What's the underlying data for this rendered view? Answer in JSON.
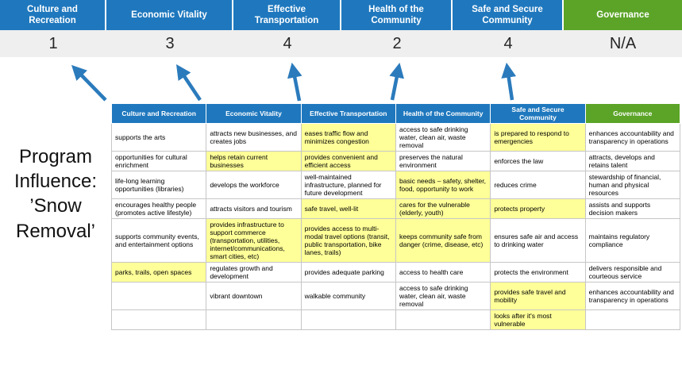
{
  "colors": {
    "blue": "#1F78BE",
    "green": "#5BA427",
    "score_bg": "#EFEFEF",
    "highlight": "#FFFF99",
    "border": "#C6C6C6",
    "arrow": "#2B7BBC"
  },
  "title": "Program Influence: ’Snow Removal’",
  "pillars": [
    {
      "label": "Culture and Recreation",
      "color_key": "blue",
      "score": "1"
    },
    {
      "label": "Economic Vitality",
      "color_key": "blue",
      "score": "3"
    },
    {
      "label": "Effective Transportation",
      "color_key": "blue",
      "score": "4"
    },
    {
      "label": "Health of the Community",
      "color_key": "blue",
      "score": "2"
    },
    {
      "label": "Safe and Secure Community",
      "color_key": "blue",
      "score": "4"
    },
    {
      "label": "Governance",
      "color_key": "green",
      "score": "N/A"
    }
  ],
  "table": {
    "headers": [
      {
        "label": "Culture and Recreation",
        "color_key": "blue"
      },
      {
        "label": "Economic Vitality",
        "color_key": "blue"
      },
      {
        "label": "Effective Transportation",
        "color_key": "blue"
      },
      {
        "label": "Health of the Community",
        "color_key": "blue"
      },
      {
        "label": "Safe and Secure Community",
        "color_key": "blue"
      },
      {
        "label": "Governance",
        "color_key": "green"
      }
    ],
    "rows": [
      [
        {
          "text": "supports the arts",
          "highlight": false
        },
        {
          "text": "attracts new businesses, and creates jobs",
          "highlight": false
        },
        {
          "text": "eases traffic flow and minimizes congestion",
          "highlight": true
        },
        {
          "text": "access to safe drinking water, clean air, waste removal",
          "highlight": false
        },
        {
          "text": "is prepared to respond to emergencies",
          "highlight": true
        },
        {
          "text": "enhances accountability and transparency in operations",
          "highlight": false
        }
      ],
      [
        {
          "text": "opportunities for cultural enrichment",
          "highlight": false
        },
        {
          "text": "helps retain current businesses",
          "highlight": true
        },
        {
          "text": "provides convenient and efficient access",
          "highlight": true
        },
        {
          "text": "preserves the natural environment",
          "highlight": false
        },
        {
          "text": "enforces the law",
          "highlight": false
        },
        {
          "text": "attracts, develops and retains talent",
          "highlight": false
        }
      ],
      [
        {
          "text": "life-long learning opportunities (libraries)",
          "highlight": false
        },
        {
          "text": "develops the workforce",
          "highlight": false
        },
        {
          "text": "well-maintained infrastructure, planned for future development",
          "highlight": false
        },
        {
          "text": "basic needs – safety, shelter, food, opportunity to work",
          "highlight": true
        },
        {
          "text": "reduces crime",
          "highlight": false
        },
        {
          "text": "stewardship of financial, human and physical resources",
          "highlight": false
        }
      ],
      [
        {
          "text": "encourages healthy people (promotes active lifestyle)",
          "highlight": false
        },
        {
          "text": "attracts visitors and tourism",
          "highlight": false
        },
        {
          "text": "safe travel, well-lit",
          "highlight": true
        },
        {
          "text": "cares for the vulnerable (elderly, youth)",
          "highlight": true
        },
        {
          "text": "protects property",
          "highlight": true
        },
        {
          "text": "assists and supports decision makers",
          "highlight": false
        }
      ],
      [
        {
          "text": "supports community events, and entertainment options",
          "highlight": false
        },
        {
          "text": "provides infrastructure to support commerce (transportation, utilities, internet/communications, smart cities, etc)",
          "highlight": true
        },
        {
          "text": "provides access to multi-modal travel options (transit, public transportation, bike lanes, trails)",
          "highlight": true
        },
        {
          "text": "keeps community safe from danger (crime, disease, etc)",
          "highlight": true
        },
        {
          "text": "ensures safe air and access to drinking water",
          "highlight": false
        },
        {
          "text": "maintains regulatory compliance",
          "highlight": false
        }
      ],
      [
        {
          "text": "parks, trails, open spaces",
          "highlight": true
        },
        {
          "text": "regulates growth and development",
          "highlight": false
        },
        {
          "text": "provides adequate parking",
          "highlight": false
        },
        {
          "text": "access to health care",
          "highlight": false
        },
        {
          "text": "protects the environment",
          "highlight": false
        },
        {
          "text": "delivers responsible and courteous service",
          "highlight": false
        }
      ],
      [
        {
          "text": "",
          "highlight": false
        },
        {
          "text": "vibrant downtown",
          "highlight": false
        },
        {
          "text": "walkable community",
          "highlight": false
        },
        {
          "text": "access to safe drinking water, clean air, waste removal",
          "highlight": false
        },
        {
          "text": "provides safe travel and mobility",
          "highlight": true
        },
        {
          "text": "enhances accountability and transparency in operations",
          "highlight": false
        }
      ],
      [
        {
          "text": "",
          "highlight": false
        },
        {
          "text": "",
          "highlight": false
        },
        {
          "text": "",
          "highlight": false
        },
        {
          "text": "",
          "highlight": false
        },
        {
          "text": "looks after it's most vulnerable",
          "highlight": true
        },
        {
          "text": "",
          "highlight": false
        }
      ]
    ]
  }
}
